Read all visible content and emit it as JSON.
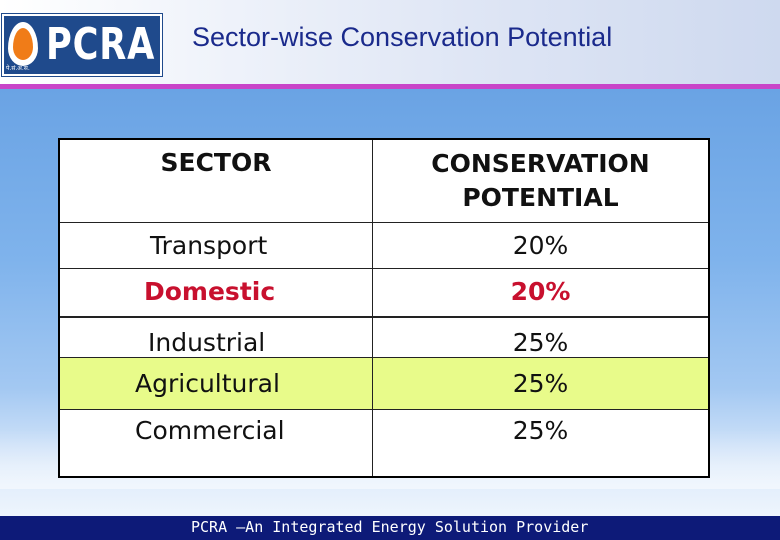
{
  "header": {
    "logo_text": "PCRA",
    "logo_tagline": "पे.सं.अ.स.",
    "title": "Sector-wise Conservation Potential"
  },
  "table": {
    "columns": [
      "SECTOR",
      "CONSERVATION POTENTIAL"
    ],
    "rows": [
      {
        "sector": "Transport",
        "potential": "20%"
      },
      {
        "sector": "Domestic",
        "potential": "20%"
      },
      {
        "sector": "Industrial",
        "potential": "25%"
      },
      {
        "sector": "Agricultural",
        "potential": "25%"
      },
      {
        "sector": "Commercial",
        "potential": "25%"
      }
    ]
  },
  "footer": {
    "text": "PCRA –An Integrated Energy Solution Provider"
  },
  "colors": {
    "title": "#1a2a8c",
    "accent_rule": "#c844c8",
    "highlight_row": "#e8fb8a",
    "domestic_text": "#c8102e",
    "footer_bg": "#0d1a78"
  }
}
